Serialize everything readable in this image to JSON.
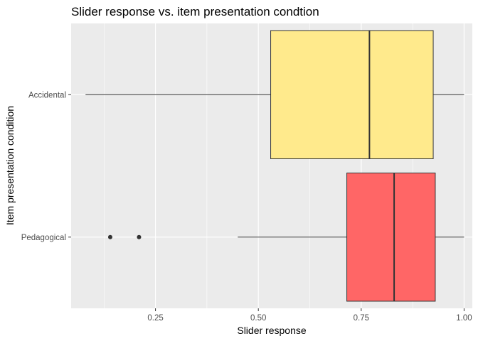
{
  "chart_data": {
    "type": "boxplot",
    "orientation": "horizontal",
    "title": "Slider response vs. item presentation condtion",
    "xlabel": "Slider response",
    "ylabel": "Item presentation condition",
    "xlim": [
      0.045,
      1.02
    ],
    "xticks": [
      0.25,
      0.5,
      0.75,
      1.0
    ],
    "xtick_labels": [
      "0.25",
      "0.50",
      "0.75",
      "1.00"
    ],
    "grid": true,
    "legend": "none",
    "panel_background": "#EBEBEB",
    "grid_color": "#FFFFFF",
    "categories": [
      "Accidental",
      "Pedagogical"
    ],
    "boxes": [
      {
        "category": "Accidental",
        "whisker_low": 0.08,
        "q1": 0.53,
        "median": 0.77,
        "q3": 0.925,
        "whisker_high": 1.0,
        "outliers": [],
        "fill": "#FFEA8C"
      },
      {
        "category": "Pedagogical",
        "whisker_low": 0.45,
        "q1": 0.715,
        "median": 0.83,
        "q3": 0.93,
        "whisker_high": 1.0,
        "outliers": [
          0.14,
          0.21
        ],
        "fill": "#FF6666"
      }
    ]
  }
}
